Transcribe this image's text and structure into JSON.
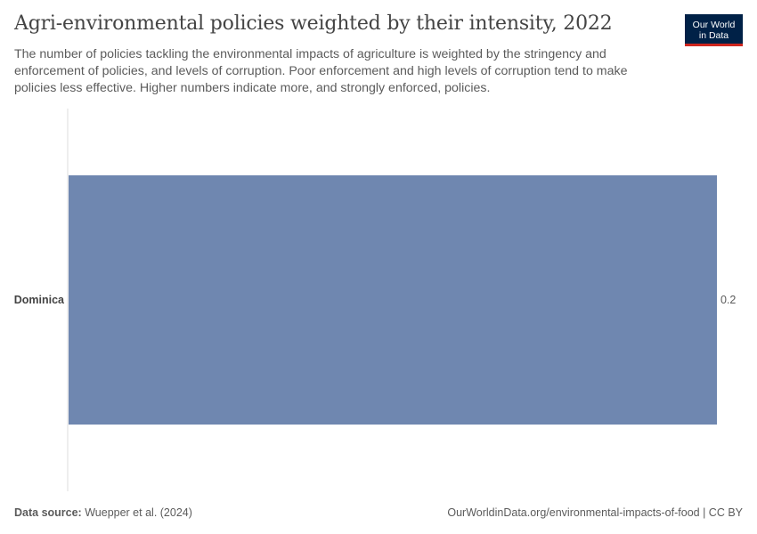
{
  "header": {
    "title": "Agri-environmental policies weighted by their intensity, 2022",
    "subtitle": "The number of policies tackling the environmental impacts of agriculture is weighted by the stringency and enforcement of policies, and levels of corruption. Poor enforcement and high levels of corruption tend to make policies less effective. Higher numbers indicate more, and strongly enforced, policies.",
    "logo_line1": "Our World",
    "logo_line2": "in Data"
  },
  "footer": {
    "source_label": "Data source:",
    "source_text": "Wuepper et al. (2024)",
    "link_text": "OurWorldinData.org/environmental-impacts-of-food | CC BY"
  },
  "colors": {
    "bar": "#6f87b0",
    "axis": "#dddddd",
    "logo_bg": "#002147",
    "logo_accent": "#ce261e"
  },
  "chart_data": {
    "type": "bar",
    "orientation": "horizontal",
    "categories": [
      "Dominica"
    ],
    "values": [
      0.2
    ],
    "value_labels": [
      "0.2"
    ],
    "xlim": [
      0,
      0.2
    ],
    "grid": false
  }
}
